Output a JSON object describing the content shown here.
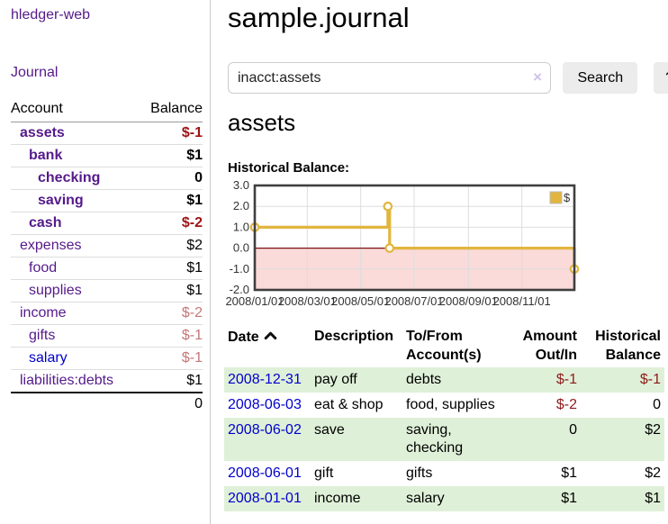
{
  "app": {
    "title": "hledger-web",
    "nav_journal": "Journal"
  },
  "sidebar": {
    "col_account": "Account",
    "col_balance": "Balance",
    "accounts": [
      {
        "name": "assets",
        "balance": "$-1",
        "level": 0,
        "bold": true,
        "bal": "neg"
      },
      {
        "name": "bank",
        "balance": "$1",
        "level": 1,
        "bold": true,
        "bal": "pos"
      },
      {
        "name": "checking",
        "balance": "0",
        "level": 2,
        "bold": true,
        "bal": "pos"
      },
      {
        "name": "saving",
        "balance": "$1",
        "level": 2,
        "bold": true,
        "bal": "pos"
      },
      {
        "name": "cash",
        "balance": "$-2",
        "level": 1,
        "bold": true,
        "bal": "neg"
      },
      {
        "name": "expenses",
        "balance": "$2",
        "level": 0,
        "bold": false,
        "bal": "pos"
      },
      {
        "name": "food",
        "balance": "$1",
        "level": 1,
        "bold": false,
        "bal": "pos"
      },
      {
        "name": "supplies",
        "balance": "$1",
        "level": 1,
        "bold": false,
        "bal": "pos"
      },
      {
        "name": "income",
        "balance": "$-2",
        "level": 0,
        "bold": false,
        "bal": "negsoft"
      },
      {
        "name": "gifts",
        "balance": "$-1",
        "level": 1,
        "bold": false,
        "bal": "negsoft"
      },
      {
        "name": "salary",
        "balance": "$-1",
        "level": 1,
        "bold": false,
        "bal": "negsoft",
        "link": "blue"
      },
      {
        "name": "liabilities:debts",
        "balance": "$1",
        "level": 0,
        "bold": false,
        "bal": "pos"
      }
    ],
    "total": "0"
  },
  "header": {
    "title": "sample.journal"
  },
  "search": {
    "value": "inacct:assets",
    "clear_icon": "×",
    "button_label": "Search",
    "help_label": "?"
  },
  "account_page": {
    "title": "assets",
    "chart_label": "Historical Balance:"
  },
  "chart_data": {
    "type": "line",
    "title": "Historical Balance",
    "step": "after",
    "legend": "$",
    "x_range": [
      "2008/01/01",
      "2008/12/31"
    ],
    "ylim": [
      -2,
      3
    ],
    "y_ticks": [
      3,
      2,
      1,
      0,
      -1,
      -2
    ],
    "y_tick_labels": [
      "3.0",
      "2.0",
      "1.0",
      "0.0",
      "-1.0",
      "-2.0"
    ],
    "x_ticks": [
      {
        "date": "2008/01/01",
        "label": "2008/01/01"
      },
      {
        "date": "2008/03/01",
        "label": "2008/03/01"
      },
      {
        "date": "2008/05/01",
        "label": "2008/05/01"
      },
      {
        "date": "2008/07/01",
        "label": "2008/07/01"
      },
      {
        "date": "2008/09/01",
        "label": "2008/09/01"
      },
      {
        "date": "2008/11/01",
        "label": "2008/11/01"
      }
    ],
    "series": [
      {
        "name": "$",
        "points": [
          {
            "date": "2008/01/01",
            "value": 1
          },
          {
            "date": "2008/06/01",
            "value": 2
          },
          {
            "date": "2008/06/03",
            "value": 0
          },
          {
            "date": "2008/12/31",
            "value": -1
          }
        ]
      }
    ],
    "colors": {
      "line": "#e2b53e",
      "marker_fill": "#ffffff",
      "negative_fill": "#fbdada",
      "zero_line": "#7c1012",
      "grid": "#dddddd",
      "border": "#3f3f3f"
    }
  },
  "register": {
    "headers": {
      "date": "Date",
      "description": "Description",
      "accounts": "To/From Account(s)",
      "amount": "Amount Out/In",
      "balance": "Historical Balance"
    },
    "rows": [
      {
        "date": "2008-12-31",
        "description": "pay off",
        "accounts": "debts",
        "amount": "$-1",
        "balance": "$-1",
        "amount_neg": true,
        "balance_neg": true
      },
      {
        "date": "2008-06-03",
        "description": "eat & shop",
        "accounts": "food, supplies",
        "amount": "$-2",
        "balance": "0",
        "amount_neg": true,
        "balance_neg": false
      },
      {
        "date": "2008-06-02",
        "description": "save",
        "accounts": "saving, checking",
        "amount": "0",
        "balance": "$2",
        "amount_neg": false,
        "balance_neg": false
      },
      {
        "date": "2008-06-01",
        "description": "gift",
        "accounts": "gifts",
        "amount": "$1",
        "balance": "$2",
        "amount_neg": false,
        "balance_neg": false
      },
      {
        "date": "2008-01-01",
        "description": "income",
        "accounts": "salary",
        "amount": "$1",
        "balance": "$1",
        "amount_neg": false,
        "balance_neg": false
      }
    ]
  }
}
